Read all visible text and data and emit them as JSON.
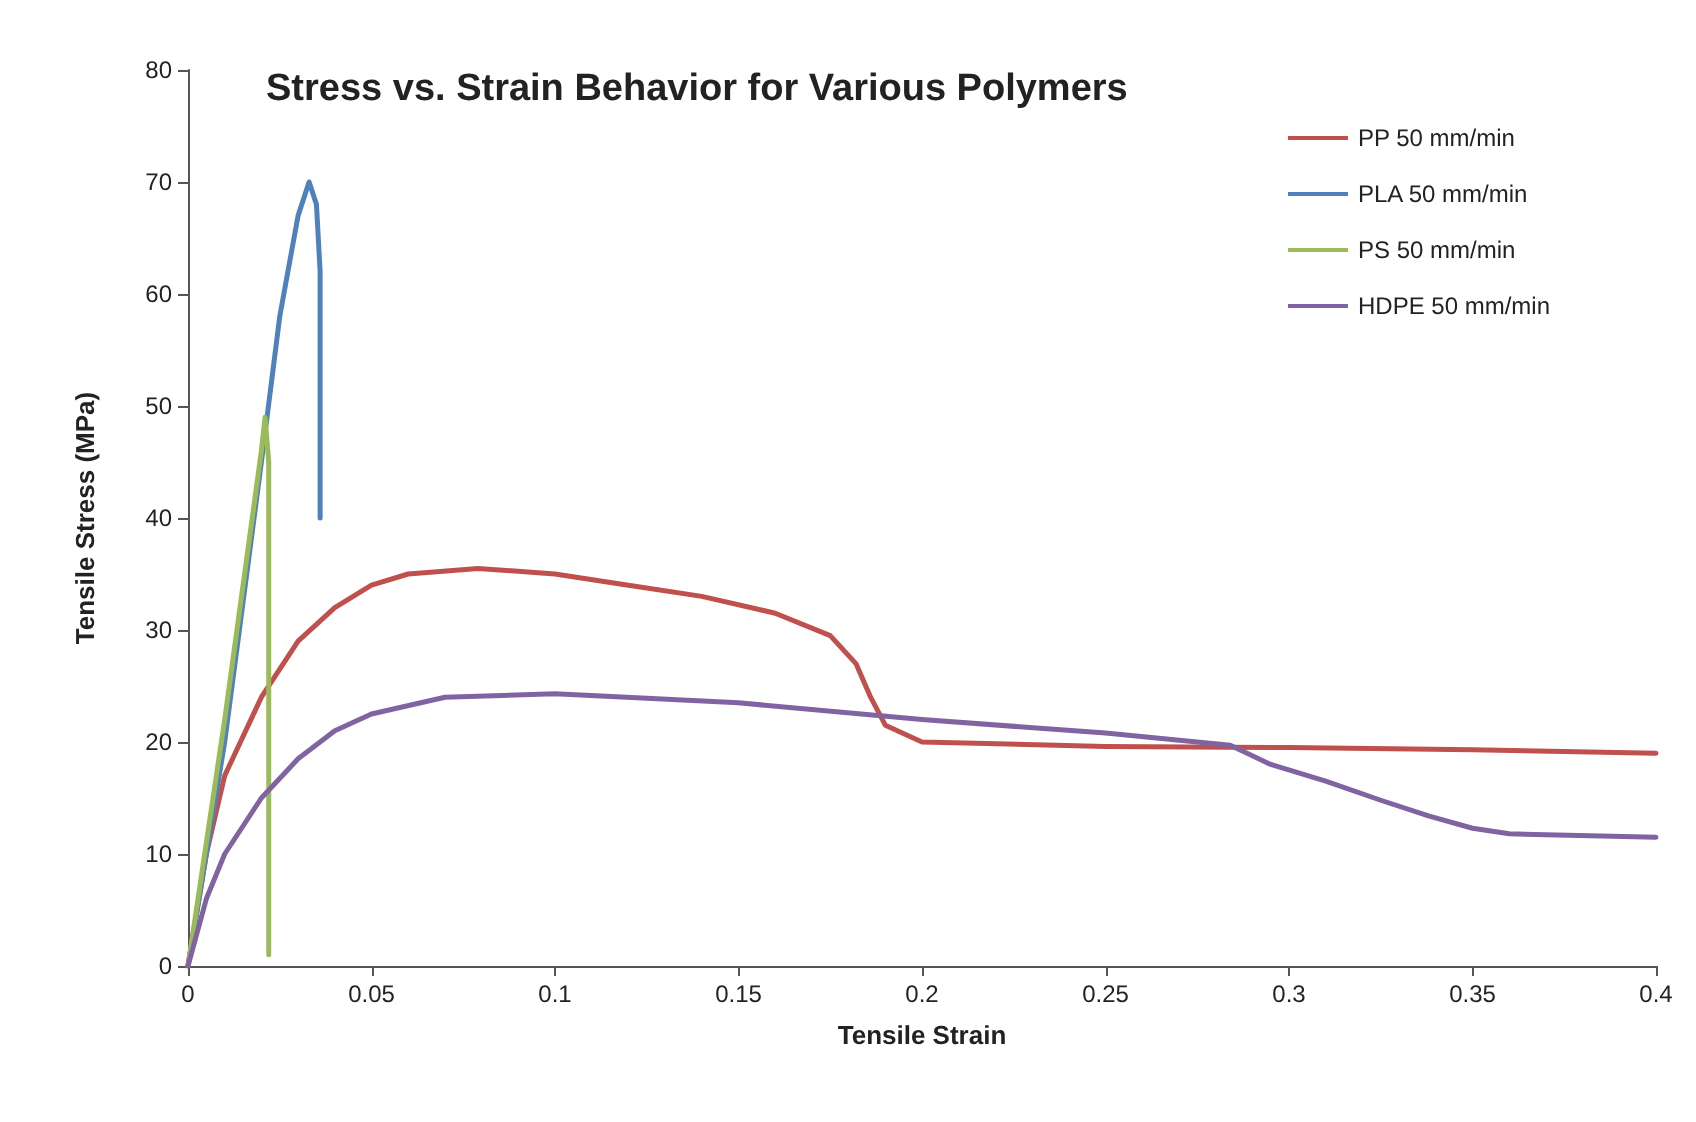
{
  "chart_data": {
    "type": "line",
    "title": "Stress vs. Strain Behavior for Various Polymers",
    "xlabel": "Tensile Strain",
    "ylabel": "Tensile Stress (MPa)",
    "xlim": [
      0,
      0.4
    ],
    "ylim": [
      0,
      80
    ],
    "xticks": [
      0,
      0.05,
      0.1,
      0.15,
      0.2,
      0.25,
      0.3,
      0.35,
      0.4
    ],
    "yticks": [
      0,
      10,
      20,
      30,
      40,
      50,
      60,
      70,
      80
    ],
    "grid": false,
    "legend": "top right",
    "marker": "none",
    "line_style": "solid",
    "series": [
      {
        "name": "PP 50 mm/min",
        "color": "#c0504d",
        "x": [
          0,
          0.005,
          0.01,
          0.02,
          0.03,
          0.04,
          0.05,
          0.06,
          0.079,
          0.1,
          0.12,
          0.14,
          0.16,
          0.175,
          0.182,
          0.186,
          0.19,
          0.2,
          0.25,
          0.3,
          0.35,
          0.4
        ],
        "values": [
          0,
          10,
          17,
          24,
          29,
          32,
          34,
          35,
          35.5,
          35,
          34,
          33,
          31.5,
          29.5,
          27,
          24,
          21.5,
          20,
          19.6,
          19.5,
          19.3,
          19
        ]
      },
      {
        "name": "PLA 50 mm/min",
        "color": "#4f81bd",
        "x": [
          0,
          0.01,
          0.02,
          0.025,
          0.03,
          0.033,
          0.035,
          0.036,
          0.036,
          0.036
        ],
        "values": [
          0,
          20,
          45,
          58,
          67,
          70,
          68,
          62,
          50,
          40
        ]
      },
      {
        "name": "PS 50 mm/min",
        "color": "#9bbb59",
        "x": [
          0,
          0.01,
          0.02,
          0.021,
          0.022,
          0.022,
          0.022
        ],
        "values": [
          0,
          22,
          46,
          49,
          45,
          20,
          1
        ]
      },
      {
        "name": "HDPE 50 mm/min",
        "color": "#8064a2",
        "x": [
          0,
          0.005,
          0.01,
          0.02,
          0.03,
          0.04,
          0.05,
          0.07,
          0.1,
          0.15,
          0.2,
          0.25,
          0.284,
          0.295,
          0.31,
          0.325,
          0.338,
          0.35,
          0.36,
          0.4
        ],
        "values": [
          0,
          6,
          10,
          15,
          18.5,
          21,
          22.5,
          24,
          24.3,
          23.5,
          22,
          20.8,
          19.7,
          18,
          16.5,
          14.8,
          13.4,
          12.3,
          11.8,
          11.5
        ]
      }
    ]
  }
}
